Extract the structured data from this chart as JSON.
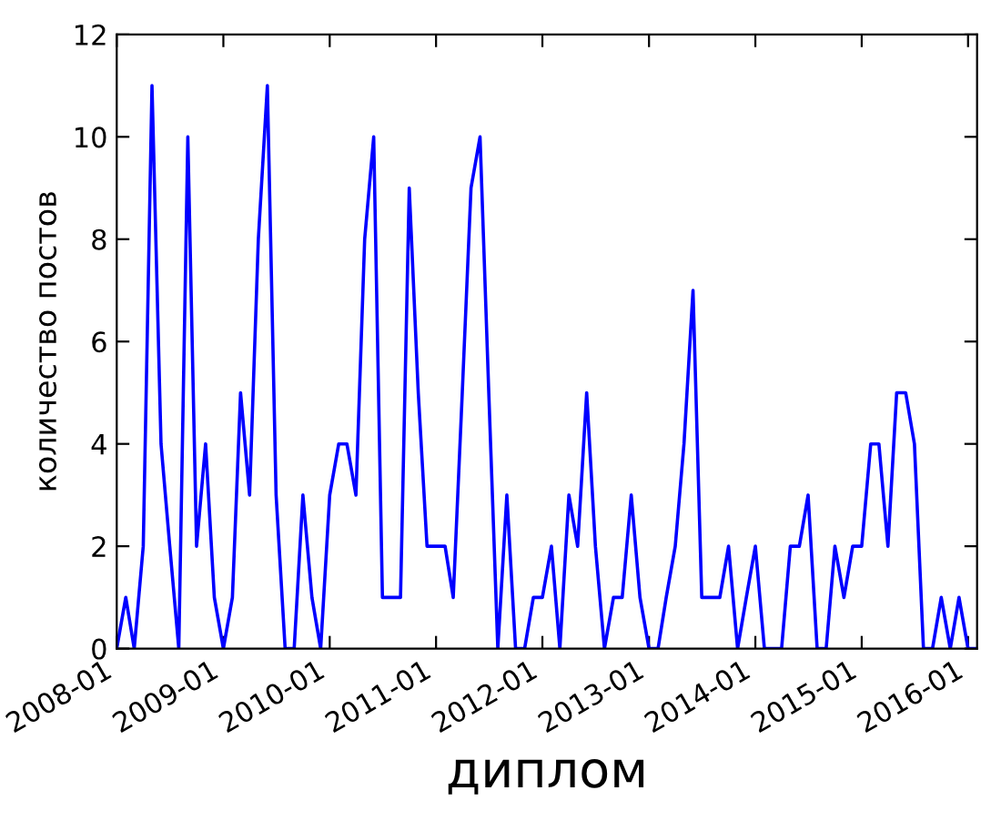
{
  "chart_data": {
    "type": "line",
    "xlabel": "диплом",
    "ylabel": "количество постов",
    "x": [
      "2008-01",
      "2008-02",
      "2008-03",
      "2008-04",
      "2008-05",
      "2008-06",
      "2008-07",
      "2008-08",
      "2008-09",
      "2008-10",
      "2008-11",
      "2008-12",
      "2009-01",
      "2009-02",
      "2009-03",
      "2009-04",
      "2009-05",
      "2009-06",
      "2009-07",
      "2009-08",
      "2009-09",
      "2009-10",
      "2009-11",
      "2009-12",
      "2010-01",
      "2010-02",
      "2010-03",
      "2010-04",
      "2010-05",
      "2010-06",
      "2010-07",
      "2010-08",
      "2010-09",
      "2010-10",
      "2010-11",
      "2010-12",
      "2011-01",
      "2011-02",
      "2011-03",
      "2011-04",
      "2011-05",
      "2011-06",
      "2011-07",
      "2011-08",
      "2011-09",
      "2011-10",
      "2011-11",
      "2011-12",
      "2012-01",
      "2012-02",
      "2012-03",
      "2012-04",
      "2012-05",
      "2012-06",
      "2012-07",
      "2012-08",
      "2012-09",
      "2012-10",
      "2012-11",
      "2012-12",
      "2013-01",
      "2013-02",
      "2013-03",
      "2013-04",
      "2013-05",
      "2013-06",
      "2013-07",
      "2013-08",
      "2013-09",
      "2013-10",
      "2013-11",
      "2013-12",
      "2014-01",
      "2014-02",
      "2014-03",
      "2014-04",
      "2014-05",
      "2014-06",
      "2014-07",
      "2014-08",
      "2014-09",
      "2014-10",
      "2014-11",
      "2014-12",
      "2015-01",
      "2015-02",
      "2015-03",
      "2015-04",
      "2015-05",
      "2015-06",
      "2015-07",
      "2015-08",
      "2015-09",
      "2015-10",
      "2015-11",
      "2015-12",
      "2016-01",
      "2016-02"
    ],
    "series": [
      {
        "color": "#0000ff",
        "values": [
          0,
          1,
          0,
          2,
          11,
          4,
          2,
          0,
          10,
          2,
          4,
          1,
          0,
          1,
          5,
          3,
          8,
          11,
          3,
          0,
          0,
          3,
          1,
          0,
          3,
          4,
          4,
          3,
          8,
          10,
          1,
          1,
          1,
          9,
          5,
          2,
          2,
          2,
          1,
          5,
          9,
          10,
          5,
          0,
          3,
          0,
          0,
          1,
          1,
          2,
          0,
          3,
          2,
          5,
          2,
          0,
          1,
          1,
          3,
          1,
          0,
          0,
          1,
          2,
          4,
          7,
          1,
          1,
          1,
          2,
          0,
          1,
          2,
          0,
          0,
          0,
          2,
          2,
          3,
          0,
          0,
          2,
          1,
          2,
          2,
          4,
          4,
          2,
          5,
          5,
          4,
          0,
          0,
          1,
          0,
          1,
          0,
          0
        ]
      }
    ],
    "xlim": [
      "2008-01",
      "2016-02"
    ],
    "xticks": [
      "2008-01",
      "2009-01",
      "2010-01",
      "2011-01",
      "2012-01",
      "2013-01",
      "2014-01",
      "2015-01",
      "2016-01"
    ],
    "ylim": [
      0,
      12
    ],
    "yticks": [
      0,
      2,
      4,
      6,
      8,
      10,
      12
    ],
    "grid": false,
    "legend": false,
    "marker": "none",
    "line_style": "solid"
  }
}
